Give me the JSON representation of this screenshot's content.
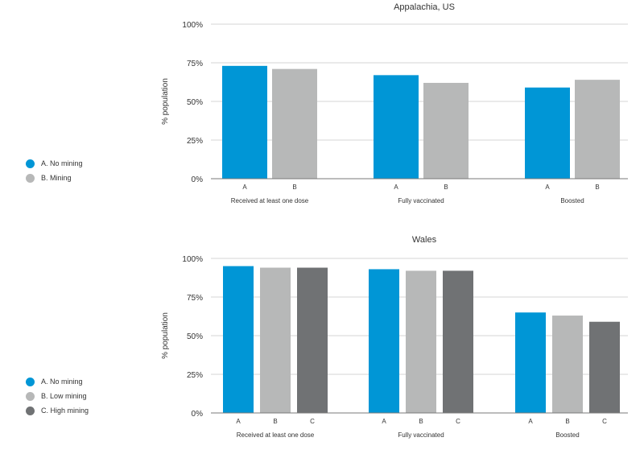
{
  "colors": {
    "A": "#0096d6",
    "B": "#b7b8b8",
    "C": "#707274",
    "grid": "#d4d4d4",
    "axis": "#7a7a7a",
    "text": "#333333"
  },
  "chart_data": [
    {
      "type": "bar",
      "title": "Appalachia, US",
      "ylabel": "% population",
      "ylim": [
        0,
        100
      ],
      "yticks": [
        "0%",
        "25%",
        "50%",
        "75%",
        "100%"
      ],
      "groups": [
        "Received at least one dose",
        "Fully vaccinated",
        "Boosted"
      ],
      "series": [
        {
          "key": "A",
          "name": "A. No mining",
          "tick": "A",
          "values": [
            73,
            67,
            59
          ]
        },
        {
          "key": "B",
          "name": "B. Mining",
          "tick": "B",
          "values": [
            71,
            62,
            64
          ]
        }
      ],
      "legend": "left",
      "grid": true
    },
    {
      "type": "bar",
      "title": "Wales",
      "ylabel": "% population",
      "ylim": [
        0,
        100
      ],
      "yticks": [
        "0%",
        "25%",
        "50%",
        "75%",
        "100%"
      ],
      "groups": [
        "Received at least one dose",
        "Fully vaccinated",
        "Boosted"
      ],
      "series": [
        {
          "key": "A",
          "name": "A. No mining",
          "tick": "A",
          "values": [
            95,
            93,
            65
          ]
        },
        {
          "key": "B",
          "name": "B. Low mining",
          "tick": "B",
          "values": [
            94,
            92,
            63
          ]
        },
        {
          "key": "C",
          "name": "C. High mining",
          "tick": "C",
          "values": [
            94,
            92,
            59
          ]
        }
      ],
      "legend": "left",
      "grid": true
    }
  ]
}
